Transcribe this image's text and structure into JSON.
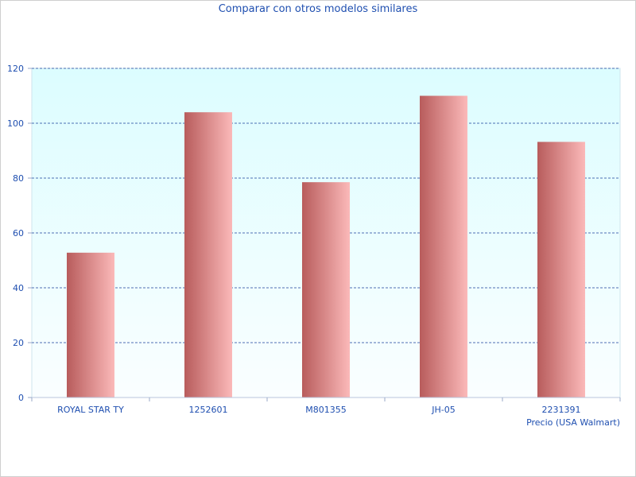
{
  "chart_data": {
    "type": "bar",
    "title": "Comparar con otros modelos similares",
    "xlabel": "Precio (USA Walmart)",
    "ylabel": "",
    "categories": [
      "ROYAL STAR TY",
      "1252601",
      "M801355",
      "JH-05",
      "2231391"
    ],
    "values": [
      52.8,
      104.0,
      78.5,
      110.0,
      93.2
    ],
    "ylim": [
      0,
      120
    ],
    "yticks": [
      0,
      20,
      40,
      60,
      80,
      100,
      120
    ],
    "grid": true,
    "colors": {
      "bar_dark": "#b85c5c",
      "bar_light": "#fbb9b9",
      "plot_bg_top": "#dcfdff",
      "plot_bg_bottom": "#fafeff",
      "grid": "#1a3f9a",
      "text": "#1f4fb0"
    }
  }
}
